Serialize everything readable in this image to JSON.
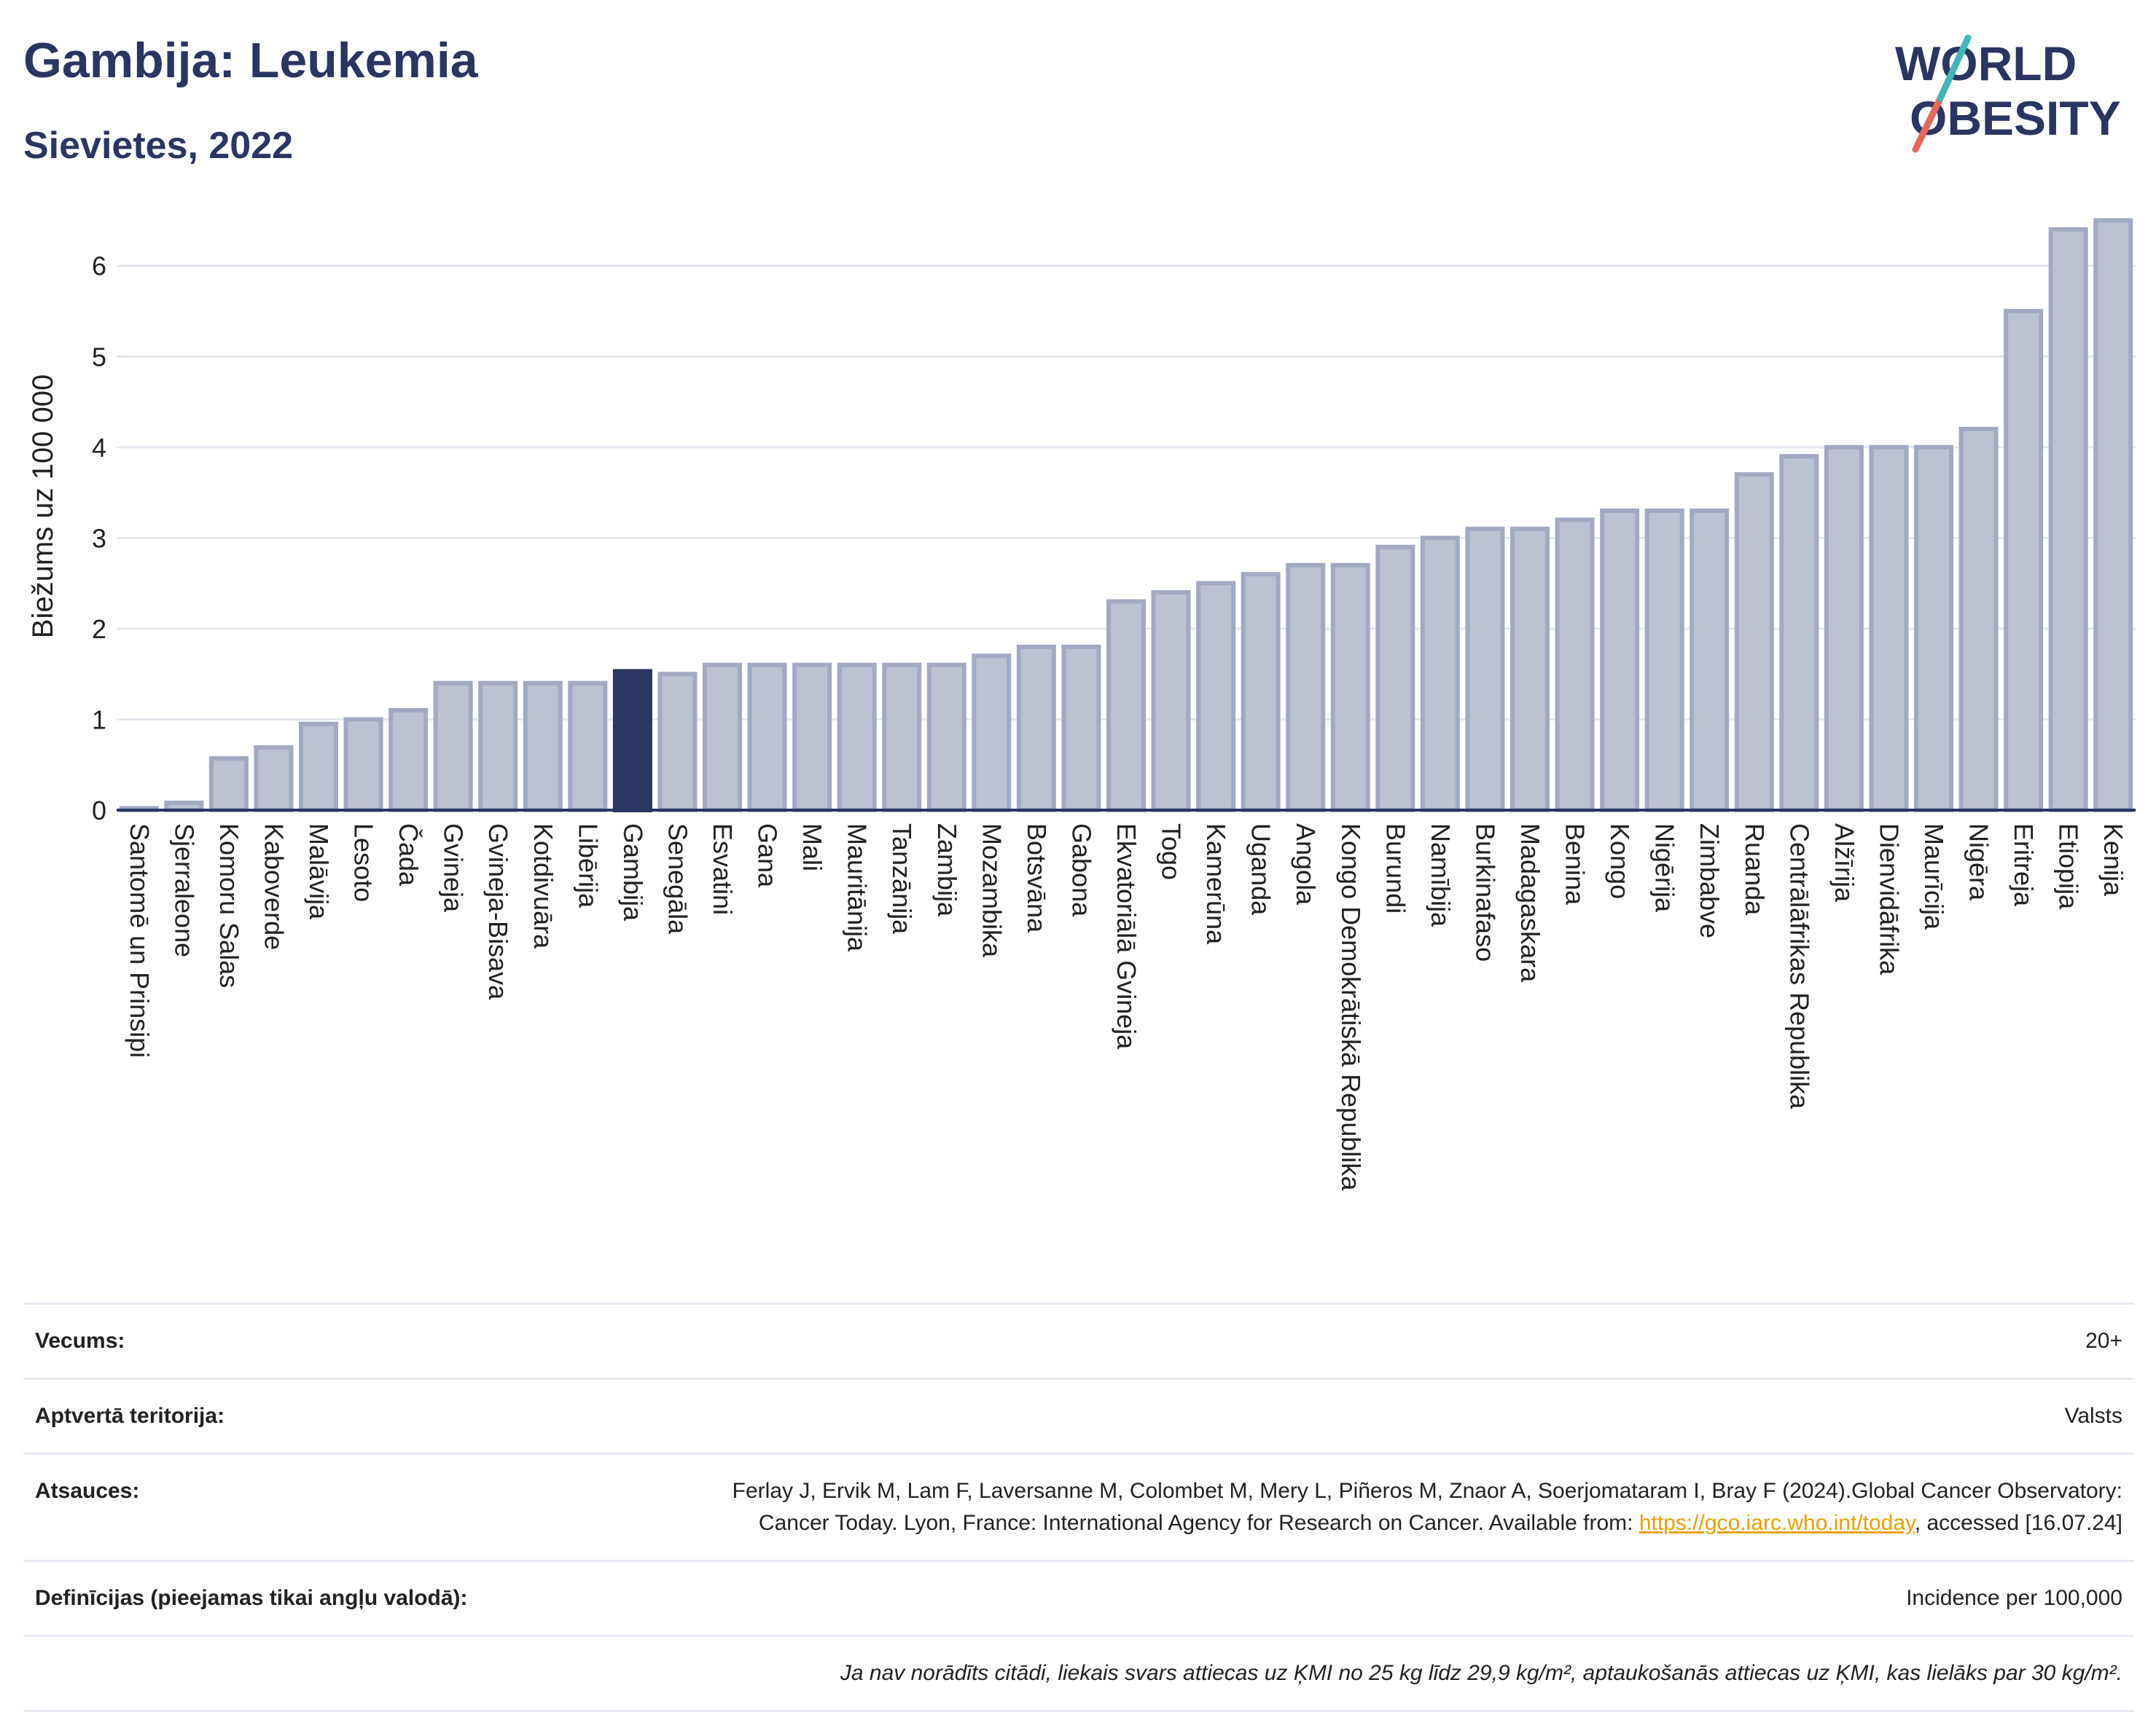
{
  "header": {
    "title": "Gambija: Leukemia",
    "subtitle": "Sievietes, 2022",
    "logo_line1": "WORLD",
    "logo_line2": "OBESITY"
  },
  "chart_data": {
    "type": "bar",
    "ylabel": "Biežums uz 100 000",
    "ylim": [
      0,
      6.6
    ],
    "yticks": [
      0,
      1,
      2,
      3,
      4,
      5,
      6
    ],
    "grid": true,
    "highlight": "Gambija",
    "colors": {
      "bar": "#bcc1d3",
      "bar_edge": "#a2a9c2",
      "highlight": "#2b3561",
      "axis": "#2b3561",
      "grid": "#e4e6ee"
    },
    "categories": [
      "Santomē un Prinsipi",
      "Sjerraleone",
      "Komoru Salas",
      "Kaboverde",
      "Malāvija",
      "Lesoto",
      "Čada",
      "Gvineja",
      "Gvineja-Bisava",
      "Kotdivuāra",
      "Libērija",
      "Gambija",
      "Senegāla",
      "Esvatini",
      "Gana",
      "Mali",
      "Mauritānija",
      "Tanzānija",
      "Zambija",
      "Mozambika",
      "Botsvāna",
      "Gabona",
      "Ekvatoriālā Gvineja",
      "Togo",
      "Kamerūna",
      "Uganda",
      "Angola",
      "Kongo Demokrātiskā Republika",
      "Burundi",
      "Namībija",
      "Burkinafaso",
      "Madagaskara",
      "Benina",
      "Kongo",
      "Nigērija",
      "Zimbabve",
      "Ruanda",
      "Centrālāfrikas Republika",
      "Alžīrija",
      "Dienvidāfrika",
      "Maurīcija",
      "Nigēra",
      "Eritreja",
      "Etiopija",
      "Kenija"
    ],
    "values": [
      0.02,
      0.08,
      0.57,
      0.69,
      0.95,
      1.0,
      1.1,
      1.4,
      1.4,
      1.4,
      1.4,
      1.53,
      1.5,
      1.6,
      1.6,
      1.6,
      1.6,
      1.6,
      1.6,
      1.7,
      1.8,
      1.8,
      2.3,
      2.4,
      2.5,
      2.6,
      2.7,
      2.7,
      2.9,
      3.0,
      3.1,
      3.1,
      3.2,
      3.3,
      3.3,
      3.3,
      3.7,
      3.9,
      4.0,
      4.0,
      4.0,
      4.2,
      5.5,
      6.4,
      6.5
    ]
  },
  "meta": {
    "age_label": "Vecums:",
    "age_value": "20+",
    "territory_label": "Aptvertā teritorija:",
    "territory_value": "Valsts",
    "refs_label": "Atsauces:",
    "refs_text": "Ferlay J, Ervik M, Lam F, Laversanne M, Colombet M, Mery L, Piñeros M, Znaor A, Soerjomataram I, Bray F (2024).Global Cancer Observatory: Cancer Today. Lyon, France: International Agency for Research on Cancer. Available from: ",
    "refs_link": "https://gco.iarc.who.int/today",
    "refs_tail": ", accessed [16.07.24]",
    "defs_label": "Definīcijas (pieejamas tikai angļu valodā):",
    "defs_value": "Incidence per 100,000",
    "note": "Ja nav norādīts citādi, liekais svars attiecas uz ĶMI no 25 kg līdz 29,9 kg/m², aptaukošanās attiecas uz ĶMI, kas lielāks par 30 kg/m²."
  }
}
